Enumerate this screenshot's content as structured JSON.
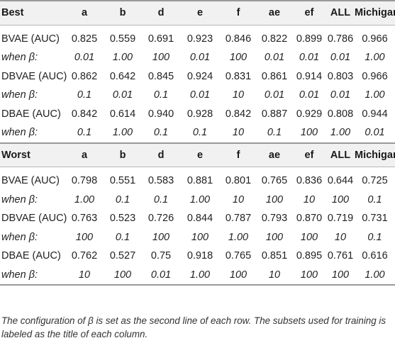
{
  "columns": [
    "a",
    "b",
    "d",
    "e",
    "f",
    "ae",
    "ef",
    "ALL",
    "Michigan"
  ],
  "sections": [
    {
      "title": "Best",
      "rows": [
        {
          "label": "BVAE (AUC)",
          "italic": false,
          "values": [
            "0.825",
            "0.559",
            "0.691",
            "0.923",
            "0.846",
            "0.822",
            "0.899",
            "0.786",
            "0.966"
          ]
        },
        {
          "label": "when β:",
          "italic": true,
          "values": [
            "0.01",
            "1.00",
            "100",
            "0.01",
            "100",
            "0.01",
            "0.01",
            "0.01",
            "1.00"
          ]
        },
        {
          "label": "DBVAE (AUC)",
          "italic": false,
          "values": [
            "0.862",
            "0.642",
            "0.845",
            "0.924",
            "0.831",
            "0.861",
            "0.914",
            "0.803",
            "0.966"
          ]
        },
        {
          "label": "when β:",
          "italic": true,
          "values": [
            "0.1",
            "0.01",
            "0.1",
            "0.01",
            "10",
            "0.01",
            "0.01",
            "0.01",
            "1.00"
          ]
        },
        {
          "label": "DBAE (AUC)",
          "italic": false,
          "values": [
            "0.842",
            "0.614",
            "0.940",
            "0.928",
            "0.842",
            "0.887",
            "0.929",
            "0.808",
            "0.944"
          ]
        },
        {
          "label": "when β:",
          "italic": true,
          "values": [
            "0.1",
            "1.00",
            "0.1",
            "0.1",
            "10",
            "0.1",
            "100",
            "1.00",
            "0.01"
          ]
        }
      ]
    },
    {
      "title": "Worst",
      "rows": [
        {
          "label": "BVAE (AUC)",
          "italic": false,
          "values": [
            "0.798",
            "0.551",
            "0.583",
            "0.881",
            "0.801",
            "0.765",
            "0.836",
            "0.644",
            "0.725"
          ]
        },
        {
          "label": "when β:",
          "italic": true,
          "values": [
            "1.00",
            "0.1",
            "0.1",
            "1.00",
            "10",
            "100",
            "10",
            "100",
            "0.1"
          ]
        },
        {
          "label": "DBVAE (AUC)",
          "italic": false,
          "values": [
            "0.763",
            "0.523",
            "0.726",
            "0.844",
            "0.787",
            "0.793",
            "0.870",
            "0.719",
            "0.731"
          ]
        },
        {
          "label": "when β:",
          "italic": true,
          "values": [
            "100",
            "0.1",
            "100",
            "100",
            "1.00",
            "100",
            "100",
            "10",
            "0.1"
          ]
        },
        {
          "label": "DBAE (AUC)",
          "italic": false,
          "values": [
            "0.762",
            "0.527",
            "0.75",
            "0.918",
            "0.765",
            "0.851",
            "0.895",
            "0.761",
            "0.616"
          ]
        },
        {
          "label": "when β:",
          "italic": true,
          "values": [
            "10",
            "100",
            "0.01",
            "1.00",
            "100",
            "10",
            "100",
            "100",
            "1.00"
          ]
        }
      ]
    }
  ],
  "footnote": "The configuration of β is set as the second line of each row. The subsets used for training is labeled as the title of each column."
}
